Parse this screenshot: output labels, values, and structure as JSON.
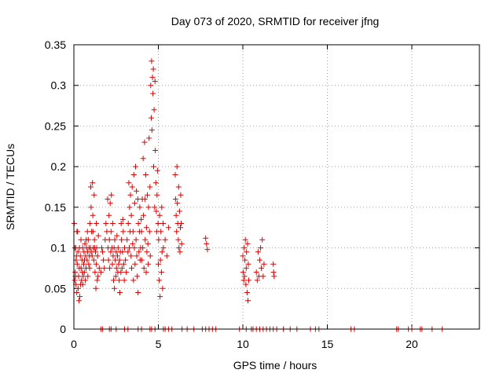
{
  "chart_data": {
    "type": "scatter",
    "title": "Day 073 of 2020, SRMTID for receiver jfng",
    "xlabel": "GPS time / hours",
    "ylabel": "SRMTID / TECUs",
    "xlim": [
      0,
      24
    ],
    "ylim": [
      0,
      0.35
    ],
    "xticks": [
      0,
      5,
      10,
      15,
      20
    ],
    "xtick_labels": [
      "0",
      "5",
      "10",
      "15",
      "20"
    ],
    "yticks": [
      0,
      0.05,
      0.1,
      0.15,
      0.2,
      0.25,
      0.3,
      0.35
    ],
    "ytick_labels": [
      "0",
      "0.05",
      "0.1",
      "0.15",
      "0.2",
      "0.25",
      "0.3",
      "0.35"
    ],
    "grid": true,
    "marker": "+",
    "color": "#dd0000",
    "series": [
      {
        "name": "SRMTID",
        "points": [
          [
            0.05,
            0.06
          ],
          [
            0.08,
            0.07
          ],
          [
            0.1,
            0.1
          ],
          [
            0.12,
            0.055
          ],
          [
            0.15,
            0.09
          ],
          [
            0.17,
            0.045
          ],
          [
            0.2,
            0.08
          ],
          [
            0.22,
            0.12
          ],
          [
            0.25,
            0.05
          ],
          [
            0.28,
            0.065
          ],
          [
            0.3,
            0.035
          ],
          [
            0.32,
            0.075
          ],
          [
            0.35,
            0.04
          ],
          [
            0.38,
            0.09
          ],
          [
            0.4,
            0.055
          ],
          [
            0.42,
            0.11
          ],
          [
            0.45,
            0.06
          ],
          [
            0.48,
            0.085
          ],
          [
            0.5,
            0.07
          ],
          [
            0.52,
            0.1
          ],
          [
            0.55,
            0.065
          ],
          [
            0.58,
            0.08
          ],
          [
            0.6,
            0.095
          ],
          [
            0.62,
            0.07
          ],
          [
            0.65,
            0.105
          ],
          [
            0.68,
            0.06
          ],
          [
            0.7,
            0.09
          ],
          [
            0.72,
            0.075
          ],
          [
            0.75,
            0.1
          ],
          [
            0.78,
            0.085
          ],
          [
            0.8,
            0.12
          ],
          [
            0.82,
            0.095
          ],
          [
            0.85,
            0.11
          ],
          [
            0.88,
            0.08
          ],
          [
            0.9,
            0.1
          ],
          [
            0.92,
            0.09
          ],
          [
            0.95,
            0.13
          ],
          [
            0.98,
            0.1
          ],
          [
            1.0,
            0.175
          ],
          [
            1.02,
            0.15
          ],
          [
            1.05,
            0.12
          ],
          [
            1.08,
            0.09
          ],
          [
            1.1,
            0.18
          ],
          [
            1.12,
            0.14
          ],
          [
            1.15,
            0.1
          ],
          [
            1.18,
            0.085
          ],
          [
            1.2,
            0.165
          ],
          [
            1.22,
            0.11
          ],
          [
            1.25,
            0.07
          ],
          [
            1.28,
            0.095
          ],
          [
            1.3,
            0.05
          ],
          [
            1.32,
            0.08
          ],
          [
            1.35,
            0.1
          ],
          [
            1.38,
            0.06
          ],
          [
            1.4,
            0.09
          ],
          [
            1.45,
            0.115
          ],
          [
            1.5,
            0.075
          ],
          [
            0.02,
            0.13
          ],
          [
            0.06,
            0.1
          ],
          [
            0.09,
            0.065
          ],
          [
            0.13,
            0.085
          ],
          [
            0.18,
            0.12
          ],
          [
            0.24,
            0.095
          ],
          [
            0.33,
            0.1
          ],
          [
            0.43,
            0.075
          ],
          [
            0.53,
            0.055
          ],
          [
            0.63,
            0.085
          ],
          [
            0.73,
            0.11
          ],
          [
            0.83,
            0.065
          ],
          [
            0.93,
            0.075
          ],
          [
            1.03,
            0.095
          ],
          [
            1.13,
            0.12
          ],
          [
            1.23,
            0.1
          ],
          [
            1.33,
            0.13
          ],
          [
            1.43,
            0.065
          ],
          [
            1.6,
            0.07
          ],
          [
            1.65,
            0.1
          ],
          [
            1.7,
            0.095
          ],
          [
            1.75,
            0.085
          ],
          [
            1.8,
            0.075
          ],
          [
            1.85,
            0.11
          ],
          [
            1.9,
            0.13
          ],
          [
            1.95,
            0.12
          ],
          [
            2.0,
            0.16
          ],
          [
            2.02,
            0.1
          ],
          [
            2.05,
            0.085
          ],
          [
            2.08,
            0.14
          ],
          [
            2.1,
            0.11
          ],
          [
            2.12,
            0.075
          ],
          [
            2.15,
            0.155
          ],
          [
            2.18,
            0.095
          ],
          [
            2.2,
            0.12
          ],
          [
            2.22,
            0.165
          ],
          [
            2.25,
            0.1
          ],
          [
            2.28,
            0.08
          ],
          [
            2.3,
            0.13
          ],
          [
            2.32,
            0.09
          ],
          [
            2.35,
            0.06
          ],
          [
            2.38,
            0.1
          ],
          [
            2.4,
            0.05
          ],
          [
            2.42,
            0.11
          ],
          [
            2.45,
            0.085
          ],
          [
            2.48,
            0.065
          ],
          [
            2.5,
            0.095
          ],
          [
            2.52,
            0.075
          ],
          [
            2.55,
            0.115
          ],
          [
            2.58,
            0.09
          ],
          [
            2.6,
            0.07
          ],
          [
            2.62,
            0.1
          ],
          [
            2.65,
            0.08
          ],
          [
            2.68,
            0.06
          ],
          [
            2.7,
            0.085
          ],
          [
            2.72,
            0.045
          ],
          [
            2.75,
            0.095
          ],
          [
            2.78,
            0.07
          ],
          [
            2.8,
            0.13
          ],
          [
            2.82,
            0.11
          ],
          [
            2.85,
            0.075
          ],
          [
            2.88,
            0.095
          ],
          [
            2.9,
            0.135
          ],
          [
            2.92,
            0.12
          ],
          [
            2.95,
            0.08
          ],
          [
            2.98,
            0.06
          ],
          [
            3.0,
            0.1
          ],
          [
            3.05,
            0.085
          ],
          [
            3.1,
            0.07
          ],
          [
            3.15,
            0.11
          ],
          [
            3.2,
            0.095
          ],
          [
            3.22,
            0.13
          ],
          [
            3.25,
            0.18
          ],
          [
            3.28,
            0.1
          ],
          [
            3.3,
            0.15
          ],
          [
            3.32,
            0.12
          ],
          [
            3.35,
            0.165
          ],
          [
            3.38,
            0.09
          ],
          [
            3.4,
            0.14
          ],
          [
            3.42,
            0.075
          ],
          [
            3.45,
            0.175
          ],
          [
            3.48,
            0.105
          ],
          [
            3.5,
            0.12
          ],
          [
            3.52,
            0.06
          ],
          [
            3.55,
            0.19
          ],
          [
            3.58,
            0.1
          ],
          [
            3.6,
            0.155
          ],
          [
            3.62,
            0.08
          ],
          [
            3.65,
            0.2
          ],
          [
            3.68,
            0.11
          ],
          [
            3.7,
            0.17
          ],
          [
            3.72,
            0.09
          ],
          [
            3.75,
            0.065
          ],
          [
            3.78,
            0.16
          ],
          [
            3.8,
            0.045
          ],
          [
            3.82,
            0.13
          ],
          [
            3.85,
            0.095
          ],
          [
            3.88,
            0.12
          ],
          [
            3.9,
            0.15
          ],
          [
            3.92,
            0.085
          ],
          [
            3.95,
            0.1
          ],
          [
            3.98,
            0.135
          ],
          [
            4.0,
            0.12
          ],
          [
            4.02,
            0.085
          ],
          [
            4.05,
            0.16
          ],
          [
            4.08,
            0.1
          ],
          [
            4.1,
            0.21
          ],
          [
            4.12,
            0.14
          ],
          [
            4.15,
            0.075
          ],
          [
            4.18,
            0.23
          ],
          [
            4.2,
            0.16
          ],
          [
            4.22,
            0.11
          ],
          [
            4.25,
            0.19
          ],
          [
            4.28,
            0.07
          ],
          [
            4.3,
            0.125
          ],
          [
            4.32,
            0.095
          ],
          [
            4.35,
            0.165
          ],
          [
            4.38,
            0.105
          ],
          [
            4.4,
            0.08
          ],
          [
            4.42,
            0.15
          ],
          [
            4.45,
            0.235
          ],
          [
            4.48,
            0.12
          ],
          [
            4.5,
            0.175
          ],
          [
            4.52,
            0.09
          ],
          [
            4.55,
            0.3
          ],
          [
            4.58,
            0.26
          ],
          [
            4.6,
            0.33
          ],
          [
            4.62,
            0.245
          ],
          [
            4.65,
            0.31
          ],
          [
            4.68,
            0.29
          ],
          [
            4.7,
            0.32
          ],
          [
            4.72,
            0.2
          ],
          [
            4.75,
            0.27
          ],
          [
            4.78,
            0.15
          ],
          [
            4.8,
            0.305
          ],
          [
            4.82,
            0.22
          ],
          [
            4.85,
            0.18
          ],
          [
            4.88,
            0.145
          ],
          [
            4.9,
            0.12
          ],
          [
            4.92,
            0.165
          ],
          [
            4.95,
            0.195
          ],
          [
            4.98,
            0.13
          ],
          [
            5.0,
            0.08
          ],
          [
            5.02,
            0.11
          ],
          [
            5.05,
            0.06
          ],
          [
            5.08,
            0.14
          ],
          [
            5.1,
            0.04
          ],
          [
            5.12,
            0.085
          ],
          [
            5.15,
            0.12
          ],
          [
            5.18,
            0.07
          ],
          [
            5.2,
            0.15
          ],
          [
            5.22,
            0.095
          ],
          [
            5.25,
            0.05
          ],
          [
            5.28,
            0.13
          ],
          [
            5.3,
            0.1
          ],
          [
            5.4,
            0.11
          ],
          [
            5.5,
            0.09
          ],
          [
            5.6,
            0.125
          ],
          [
            6.0,
            0.19
          ],
          [
            6.02,
            0.16
          ],
          [
            6.05,
            0.14
          ],
          [
            6.08,
            0.12
          ],
          [
            6.1,
            0.2
          ],
          [
            6.12,
            0.155
          ],
          [
            6.15,
            0.13
          ],
          [
            6.18,
            0.11
          ],
          [
            6.2,
            0.175
          ],
          [
            6.22,
            0.1
          ],
          [
            6.25,
            0.145
          ],
          [
            6.28,
            0.095
          ],
          [
            6.3,
            0.125
          ],
          [
            6.32,
            0.165
          ],
          [
            6.35,
            0.13
          ],
          [
            6.38,
            0.105
          ],
          [
            7.8,
            0.112
          ],
          [
            7.85,
            0.105
          ],
          [
            7.9,
            0.098
          ],
          [
            10.0,
            0.09
          ],
          [
            10.02,
            0.07
          ],
          [
            10.05,
            0.06
          ],
          [
            10.08,
            0.1
          ],
          [
            10.1,
            0.065
          ],
          [
            10.12,
            0.085
          ],
          [
            10.15,
            0.11
          ],
          [
            10.18,
            0.055
          ],
          [
            10.2,
            0.075
          ],
          [
            10.22,
            0.095
          ],
          [
            10.25,
            0.045
          ],
          [
            10.28,
            0.105
          ],
          [
            10.3,
            0.035
          ],
          [
            10.32,
            0.08
          ],
          [
            10.35,
            0.06
          ],
          [
            10.8,
            0.07
          ],
          [
            10.85,
            0.06
          ],
          [
            10.9,
            0.095
          ],
          [
            10.95,
            0.065
          ],
          [
            11.0,
            0.085
          ],
          [
            11.05,
            0.1
          ],
          [
            11.1,
            0.075
          ],
          [
            11.15,
            0.11
          ],
          [
            11.2,
            0.065
          ],
          [
            11.25,
            0.08
          ],
          [
            11.8,
            0.08
          ],
          [
            11.82,
            0.07
          ],
          [
            11.85,
            0.065
          ]
        ],
        "zero_x": [
          1.6,
          1.7,
          2.1,
          2.2,
          2.5,
          3.0,
          3.2,
          3.8,
          4.0,
          4.5,
          4.6,
          4.8,
          5.3,
          5.4,
          5.6,
          5.8,
          6.4,
          6.7,
          7.1,
          7.6,
          7.8,
          8.0,
          8.2,
          8.4,
          9.8,
          10.2,
          10.5,
          10.6,
          10.8,
          11.0,
          11.2,
          11.4,
          11.6,
          11.8,
          12.0,
          12.4,
          12.8,
          13.2,
          14.0,
          14.3,
          14.5,
          16.4,
          16.6,
          19.1,
          19.2,
          19.8,
          20.0,
          20.5,
          20.6,
          21.2,
          21.8
        ]
      }
    ]
  }
}
